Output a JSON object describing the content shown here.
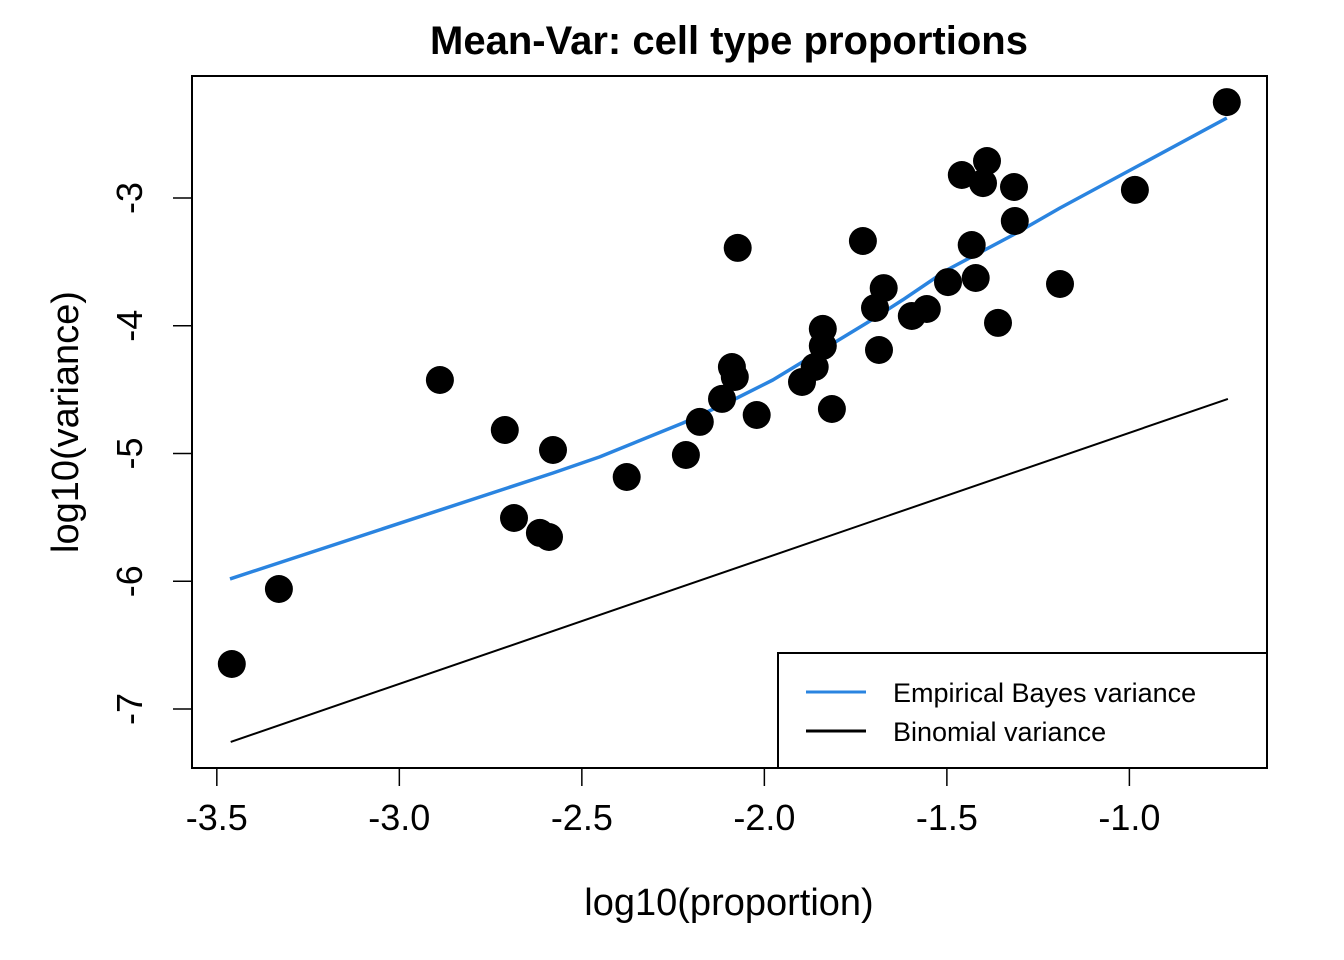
{
  "chart_data": {
    "type": "scatter",
    "title": "Mean-Var: cell type proportions",
    "xlabel": "log10(proportion)",
    "ylabel": "log10(variance)",
    "xlim": [
      -3.568,
      -0.623
    ],
    "ylim": [
      -7.462,
      -2.045
    ],
    "xticks": [
      -3.5,
      -3.0,
      -2.5,
      -2.0,
      -1.5,
      -1.0
    ],
    "xtick_labels": [
      "-3.5",
      "-3.0",
      "-2.5",
      "-2.0",
      "-1.5",
      "-1.0"
    ],
    "yticks": [
      -7,
      -6,
      -5,
      -4,
      -3
    ],
    "ytick_labels": [
      "-7",
      "-6",
      "-5",
      "-4",
      "-3"
    ],
    "grid": false,
    "legend": {
      "placement": "bottom-right",
      "entries": [
        {
          "label": "Empirical Bayes variance",
          "color": "#2A84E0"
        },
        {
          "label": "Binomial variance",
          "color": "#000000"
        }
      ]
    },
    "points": {
      "name": "cell types",
      "color": "#000000",
      "x": [
        -3.459,
        -3.33,
        -2.889,
        -2.711,
        -2.686,
        -2.615,
        -2.59,
        -2.579,
        -2.377,
        -2.215,
        -2.177,
        -2.116,
        -2.089,
        -2.081,
        -2.073,
        -2.021,
        -1.897,
        -1.862,
        -1.84,
        -1.84,
        -1.815,
        -1.73,
        -1.697,
        -1.686,
        -1.673,
        -1.596,
        -1.555,
        -1.497,
        -1.459,
        -1.432,
        -1.421,
        -1.401,
        -1.39,
        -1.36,
        -1.316,
        -1.314,
        -1.19,
        -0.985,
        -0.733
      ],
      "y": [
        -6.648,
        -6.061,
        -4.425,
        -4.816,
        -5.505,
        -5.622,
        -5.654,
        -4.973,
        -5.184,
        -5.012,
        -4.753,
        -4.573,
        -4.323,
        -4.401,
        -3.391,
        -4.699,
        -4.44,
        -4.323,
        -4.158,
        -4.025,
        -4.652,
        -3.337,
        -3.861,
        -4.19,
        -3.705,
        -3.924,
        -3.869,
        -3.658,
        -2.82,
        -3.368,
        -3.626,
        -2.883,
        -2.71,
        -3.978,
        -2.914,
        -3.18,
        -3.673,
        -2.937,
        -2.249
      ]
    },
    "series": [
      {
        "name": "Empirical Bayes variance",
        "type": "line",
        "color": "#2A84E0",
        "x": [
          -3.464,
          -2.579,
          -2.451,
          -2.223,
          -2.086,
          -1.977,
          -1.719,
          -1.621,
          -1.5,
          -1.319,
          -1.19,
          -0.733
        ],
        "y": [
          -5.982,
          -5.153,
          -5.027,
          -4.761,
          -4.581,
          -4.425,
          -3.978,
          -3.798,
          -3.564,
          -3.29,
          -3.078,
          -2.374
        ]
      },
      {
        "name": "Binomial variance",
        "type": "line",
        "color": "#000000",
        "x": [
          -3.462,
          -0.73
        ],
        "y": [
          -7.258,
          -4.573
        ]
      }
    ]
  }
}
